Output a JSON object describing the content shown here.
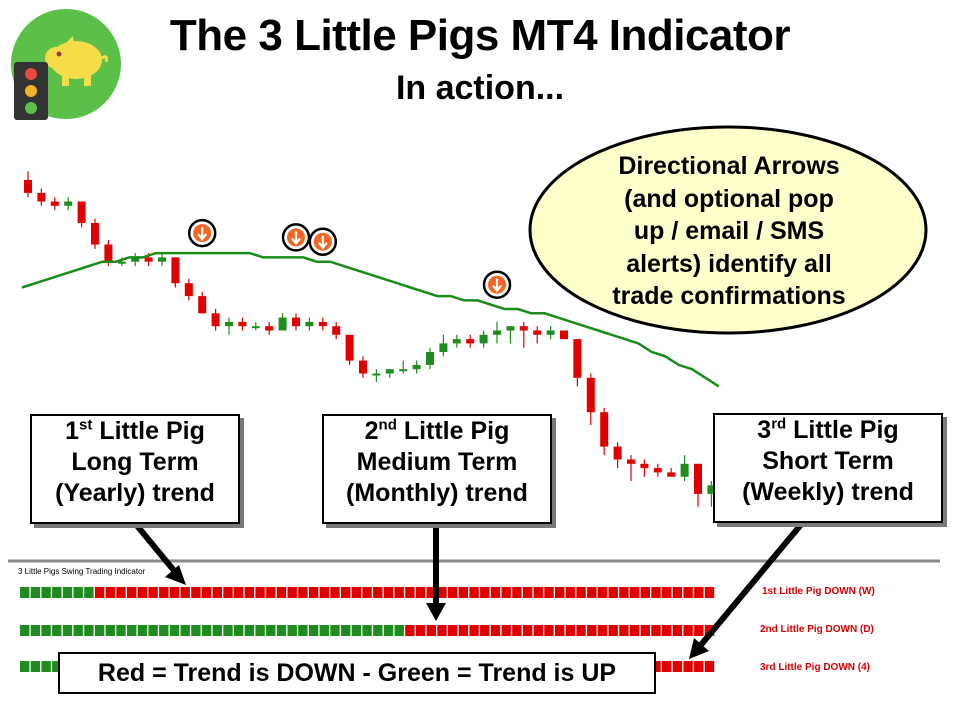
{
  "header": {
    "title": "The 3 Little Pigs MT4 Indicator",
    "subtitle": "In action..."
  },
  "logo": {
    "icon": "pig-traffic-light-icon",
    "bg_color": "#5cbf4a",
    "pig_color": "#f7dc4a",
    "light_colors": [
      "#e84b3c",
      "#f0b429",
      "#5cbf4a"
    ]
  },
  "bubble": {
    "lines": [
      "Directional Arrows",
      "(and optional pop",
      "up / email / SMS",
      "alerts) identify all",
      "trade confirmations"
    ],
    "fill": "#ffffcc"
  },
  "callouts": [
    {
      "ordinal": "1",
      "suffix": "st",
      "name": "Little Pig",
      "term": "Long Term",
      "period": "(Yearly) trend"
    },
    {
      "ordinal": "2",
      "suffix": "nd",
      "name": "Little Pig",
      "term": "Medium Term",
      "period": "(Monthly) trend"
    },
    {
      "ordinal": "3",
      "suffix": "rd",
      "name": "Little Pig",
      "term": "Short Term",
      "period": "(Weekly) trend"
    }
  ],
  "indicator_panel": {
    "title": "3 Little Pigs Swing Trading Indicator",
    "rows": [
      {
        "label": "1st Little Pig DOWN (W)",
        "green_blocks": [
          0,
          1,
          2,
          3,
          4,
          5,
          6
        ]
      },
      {
        "label": "2nd Little Pig DOWN (D)",
        "green_blocks": [
          0,
          1,
          2,
          3,
          4,
          5,
          6,
          7,
          8,
          9,
          10,
          11,
          12,
          13,
          14,
          15,
          16,
          17,
          18,
          19,
          20,
          21,
          22,
          23,
          24,
          25,
          26,
          27,
          28,
          29,
          30,
          31,
          32,
          33,
          34,
          35
        ]
      },
      {
        "label": "3rd Little Pig DOWN (4)",
        "green_blocks": [
          0,
          1,
          2,
          3,
          4,
          5,
          6,
          7,
          8,
          9,
          10,
          11,
          12,
          13,
          14,
          15
        ]
      }
    ]
  },
  "legend": "Red = Trend is DOWN  -  Green = Trend is UP",
  "colors": {
    "up": "#1e8c1e",
    "down": "#e00000",
    "moving_average": "#1a8c1a",
    "arrow_icon": "#f26522"
  },
  "chart_data": {
    "type": "candlestick",
    "series": [
      {
        "type": "ohlc",
        "values": [
          [
            95,
            97,
            91,
            92
          ],
          [
            92,
            93,
            89,
            90
          ],
          [
            90,
            91,
            88,
            89
          ],
          [
            89,
            91,
            88,
            90
          ],
          [
            90,
            90,
            84,
            85
          ],
          [
            85,
            86,
            79,
            80
          ],
          [
            80,
            81,
            75,
            76
          ],
          [
            76,
            77,
            75,
            76
          ],
          [
            76,
            78,
            75,
            77
          ],
          [
            77,
            78,
            75,
            76
          ],
          [
            76,
            78,
            75,
            77
          ],
          [
            77,
            77,
            70,
            71
          ],
          [
            71,
            72,
            67,
            68
          ],
          [
            68,
            69,
            64,
            64
          ],
          [
            64,
            65,
            60,
            61
          ],
          [
            61,
            63,
            59,
            62
          ],
          [
            62,
            63,
            60,
            61
          ],
          [
            61,
            62,
            60,
            61
          ],
          [
            61,
            62,
            59,
            60
          ],
          [
            60,
            64,
            60,
            63
          ],
          [
            63,
            64,
            60,
            61
          ],
          [
            61,
            63,
            60,
            62
          ],
          [
            62,
            63,
            60,
            61
          ],
          [
            61,
            62,
            58,
            59
          ],
          [
            59,
            59,
            52,
            53
          ],
          [
            53,
            54,
            49,
            50
          ],
          [
            50,
            51,
            48,
            50
          ],
          [
            50,
            51,
            49,
            51
          ],
          [
            51,
            53,
            50,
            51
          ],
          [
            51,
            53,
            50,
            52
          ],
          [
            52,
            56,
            51,
            55
          ],
          [
            55,
            59,
            54,
            57
          ],
          [
            57,
            59,
            56,
            58
          ],
          [
            58,
            59,
            56,
            57
          ],
          [
            57,
            60,
            56,
            59
          ],
          [
            59,
            62,
            57,
            60
          ],
          [
            60,
            61,
            57,
            61
          ],
          [
            61,
            62,
            56,
            60
          ],
          [
            60,
            61,
            57,
            59
          ],
          [
            59,
            61,
            58,
            60
          ],
          [
            60,
            60,
            58,
            58
          ],
          [
            58,
            58,
            47,
            49
          ],
          [
            49,
            50,
            38,
            41
          ],
          [
            41,
            42,
            31,
            33
          ],
          [
            33,
            34,
            28,
            30
          ],
          [
            30,
            31,
            25,
            29
          ],
          [
            29,
            30,
            26,
            28
          ],
          [
            28,
            29,
            26,
            27
          ],
          [
            27,
            28,
            26,
            26
          ],
          [
            26,
            31,
            25,
            29
          ],
          [
            29,
            29,
            19,
            22
          ],
          [
            22,
            25,
            19,
            24
          ],
          [
            24,
            26,
            23,
            25
          ]
        ]
      },
      {
        "type": "moving_average",
        "values": [
          70,
          71,
          72,
          73,
          74,
          75,
          76,
          76,
          77,
          77,
          78,
          78,
          78,
          78,
          78,
          78,
          78,
          78,
          77,
          77,
          77,
          77,
          76,
          76,
          75,
          74,
          73,
          72,
          71,
          70,
          69,
          68,
          68,
          67,
          67,
          66,
          65,
          65,
          64,
          64,
          63,
          62,
          61,
          60,
          59,
          58,
          57,
          55,
          54,
          52,
          51,
          49,
          47
        ]
      }
    ],
    "signal_arrows": [
      13,
      20,
      22,
      35
    ]
  }
}
